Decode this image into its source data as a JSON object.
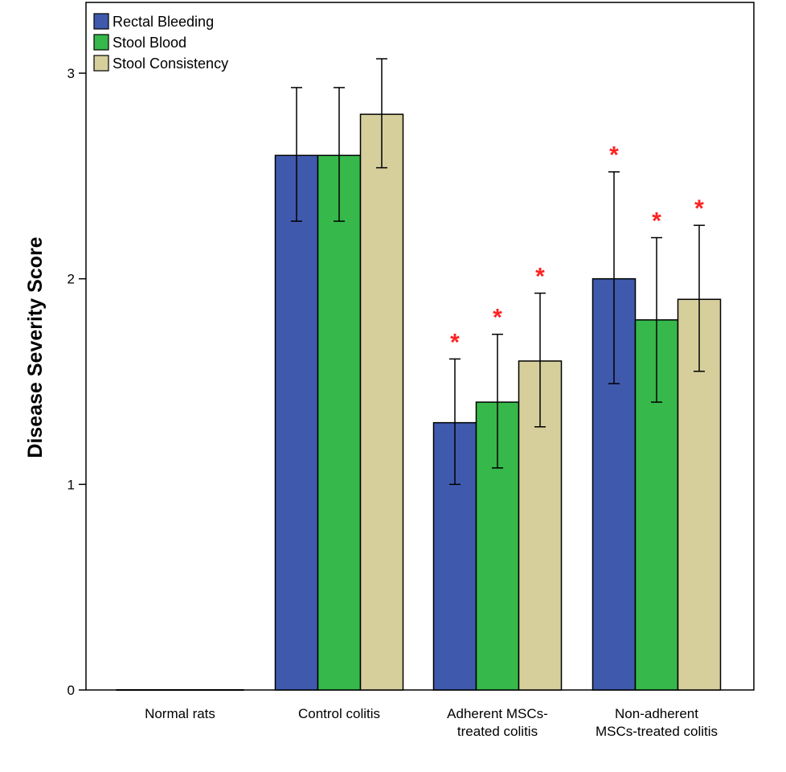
{
  "chart_data": {
    "type": "bar",
    "title": "",
    "xlabel": "",
    "ylabel": "Disease Severity Score",
    "ylim": [
      0,
      3.35
    ],
    "yticks": [
      0,
      1,
      2,
      3
    ],
    "grid": false,
    "legend_position": "top-left",
    "categories": [
      [
        "Normal rats"
      ],
      [
        "Control colitis"
      ],
      [
        "Adherent MSCs-",
        "treated colitis"
      ],
      [
        "Non-adherent",
        "MSCs-treated colitis"
      ]
    ],
    "series": [
      {
        "name": "Rectal Bleeding",
        "color": "#3f5aad",
        "values": [
          0,
          2.6,
          1.3,
          2.0
        ],
        "err_low": [
          0,
          2.28,
          1.0,
          1.49
        ],
        "err_high": [
          0,
          2.93,
          1.61,
          2.52
        ]
      },
      {
        "name": "Stool Blood",
        "color": "#36b84a",
        "values": [
          0,
          2.6,
          1.4,
          1.8
        ],
        "err_low": [
          0,
          2.28,
          1.08,
          1.4
        ],
        "err_high": [
          0,
          2.93,
          1.73,
          2.2
        ]
      },
      {
        "name": "Stool Consistency",
        "color": "#d6cf9c",
        "values": [
          0,
          2.8,
          1.6,
          1.9
        ],
        "err_low": [
          0,
          2.54,
          1.28,
          1.55
        ],
        "err_high": [
          0,
          3.07,
          1.93,
          2.26
        ]
      }
    ],
    "significance_marker": "*",
    "significance_color": "#ff2222",
    "significant": [
      [
        false,
        false,
        true,
        true
      ],
      [
        false,
        false,
        true,
        true
      ],
      [
        false,
        false,
        true,
        true
      ]
    ]
  }
}
